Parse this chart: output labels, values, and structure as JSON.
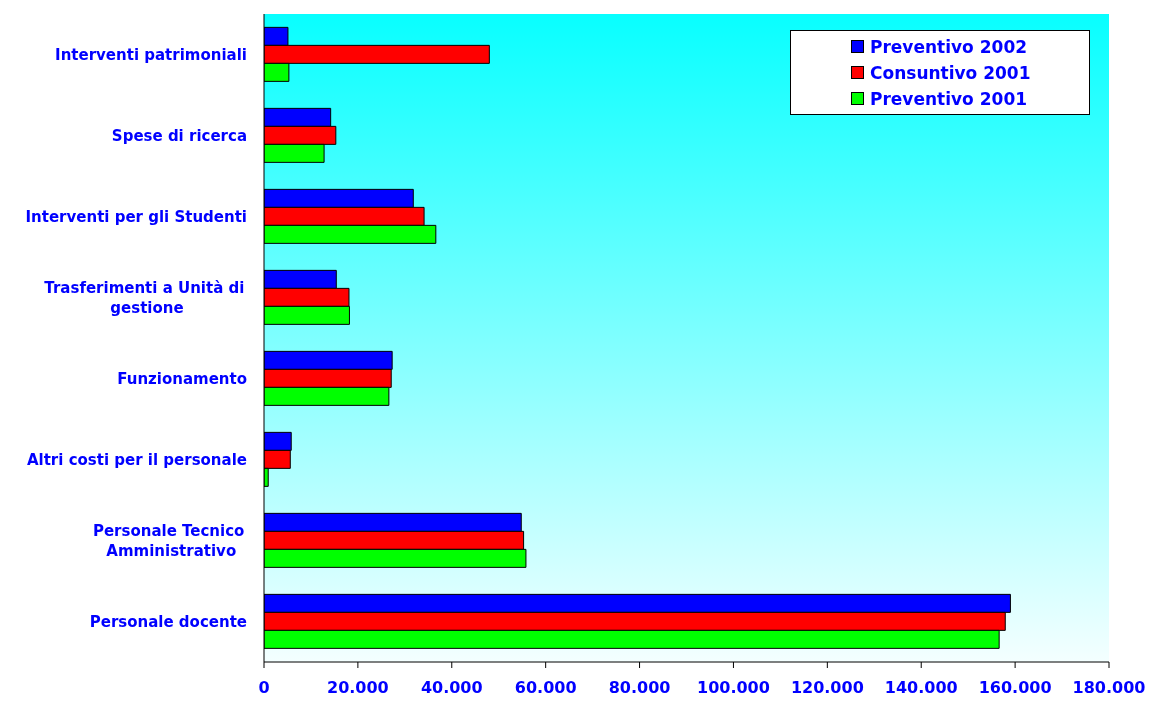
{
  "chart_data": {
    "type": "bar",
    "orientation": "horizontal",
    "categories": [
      "Interventi patrimoniali",
      "Spese di ricerca",
      "Interventi per gli Studenti",
      "Trasferimenti a Unità di gestione",
      "Funzionamento",
      "Altri costi per il personale",
      "Personale Tecnico Amministrativo",
      "Personale docente"
    ],
    "series": [
      {
        "name": "Preventivo 2002",
        "color": "#0000ff",
        "values": [
          5100,
          14200,
          31800,
          15400,
          27300,
          5800,
          54800,
          159000
        ]
      },
      {
        "name": "Consuntivo 2001",
        "color": "#ff0000",
        "values": [
          48000,
          15300,
          34100,
          18100,
          27100,
          5600,
          55300,
          157900
        ]
      },
      {
        "name": "Preventivo 2001",
        "color": "#00ff00",
        "values": [
          5300,
          12800,
          36600,
          18200,
          26600,
          900,
          55800,
          156600
        ]
      }
    ],
    "xlim": [
      0,
      180000
    ],
    "xticks": [
      0,
      {
        "value": 20000,
        "label": "20.000"
      },
      {
        "value": 40000,
        "label": "40.000"
      },
      {
        "value": 60000,
        "label": "60.000"
      },
      {
        "value": 80000,
        "label": "80.000"
      },
      {
        "value": 100000,
        "label": "100.000"
      },
      {
        "value": 120000,
        "label": "120.000"
      },
      {
        "value": 140000,
        "label": "140.000"
      },
      {
        "value": 160000,
        "label": "160.000"
      },
      {
        "value": 180000,
        "label": "180.000"
      }
    ],
    "legend": "top right"
  }
}
